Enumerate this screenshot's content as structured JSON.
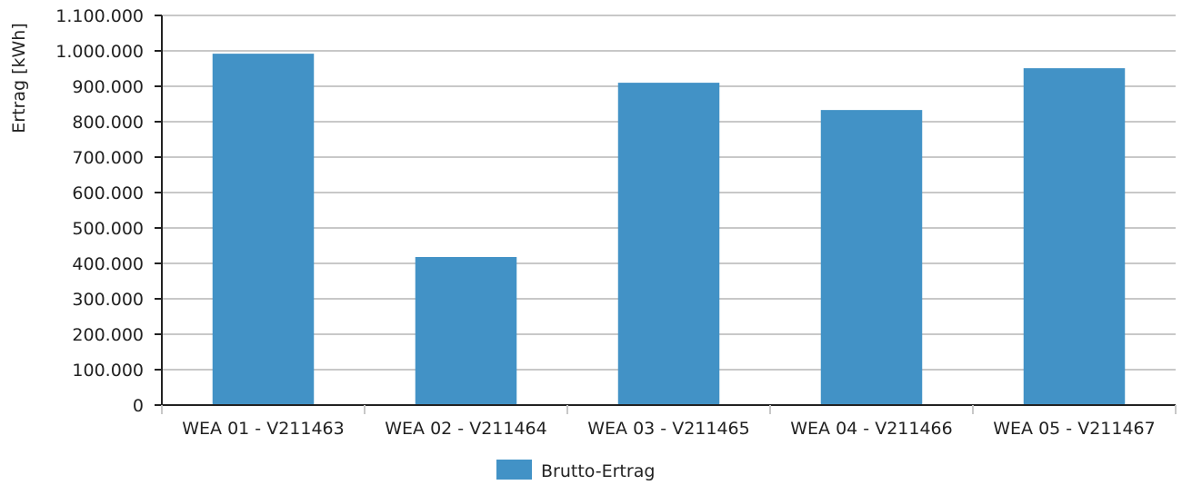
{
  "chart_data": {
    "type": "bar",
    "title": "",
    "xlabel": "",
    "ylabel": "Ertrag [kWh]",
    "categories": [
      "WEA 01 - V211463",
      "WEA 02 - V211464",
      "WEA 03 - V211465",
      "WEA 04 - V211466",
      "WEA 05 - V211467"
    ],
    "series": [
      {
        "name": "Brutto-Ertrag",
        "color": "#4292c6",
        "values": [
          992000,
          418000,
          910000,
          833000,
          951000
        ]
      }
    ],
    "ylim": [
      0,
      1100000
    ],
    "yticks": [
      0,
      100000,
      200000,
      300000,
      400000,
      500000,
      600000,
      700000,
      800000,
      900000,
      1000000,
      1100000
    ],
    "ytick_labels": [
      "0",
      "100.000",
      "200.000",
      "300.000",
      "400.000",
      "500.000",
      "600.000",
      "700.000",
      "800.000",
      "900.000",
      "1.000.000",
      "1.100.000"
    ],
    "grid": true,
    "legend_position": "bottom-center"
  }
}
